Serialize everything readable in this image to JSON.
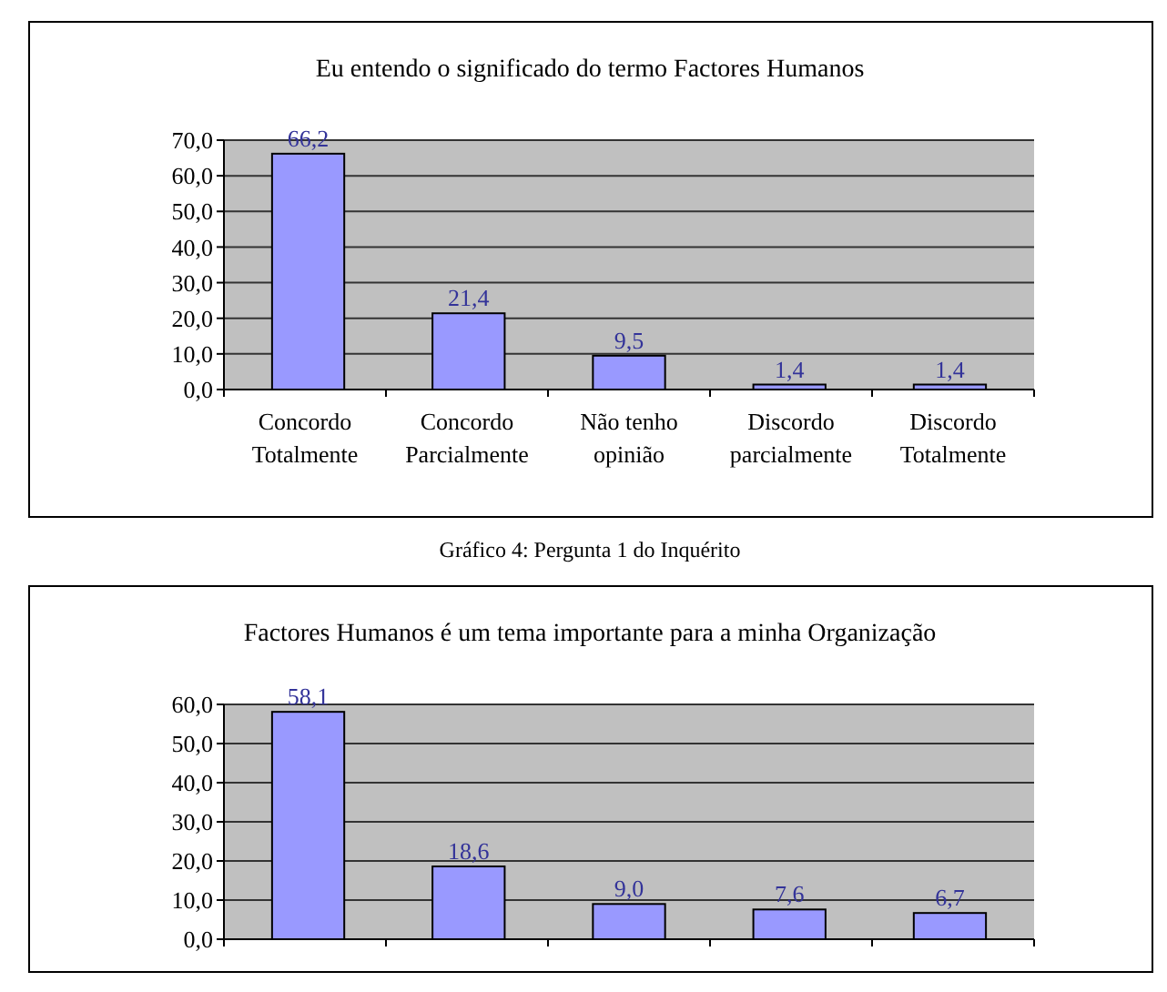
{
  "chart_data": [
    {
      "type": "bar",
      "title": "Eu entendo o significado do termo Factores Humanos",
      "categories": [
        "Concordo Totalmente",
        "Concordo Parcialmente",
        "Não tenho opinião",
        "Discordo parcialmente",
        "Discordo Totalmente"
      ],
      "values": [
        66.2,
        21.4,
        9.5,
        1.4,
        1.4
      ],
      "value_labels": [
        "66,2",
        "21,4",
        "9,5",
        "1,4",
        "1,4"
      ],
      "color": "#9999ff",
      "ylim": [
        0,
        70
      ],
      "yticks": [
        {
          "value": 0,
          "label": "0,0"
        },
        {
          "value": 10,
          "label": "10,0"
        },
        {
          "value": 20,
          "label": "20,0"
        },
        {
          "value": 30,
          "label": "30,0"
        },
        {
          "value": 40,
          "label": "40,0"
        },
        {
          "value": 50,
          "label": "50,0"
        },
        {
          "value": 60,
          "label": "60,0"
        },
        {
          "value": 70,
          "label": "70,0"
        }
      ],
      "grid": "y",
      "annotations": [
        "Gráfico 4: Pergunta 1 do Inquérito"
      ]
    },
    {
      "type": "bar",
      "title": "Factores Humanos é um tema importante para a minha Organização",
      "categories": [
        null,
        null,
        null,
        null,
        null
      ],
      "values": [
        58.1,
        18.6,
        9.0,
        7.6,
        6.7
      ],
      "value_labels": [
        "58,1",
        "18,6",
        "9,0",
        "7,6",
        "6,7"
      ],
      "color": "#9999ff",
      "ylim": [
        0,
        60
      ],
      "yticks": [
        {
          "value": 0,
          "label": "0,0"
        },
        {
          "value": 10,
          "label": "10,0"
        },
        {
          "value": 20,
          "label": "20,0"
        },
        {
          "value": 30,
          "label": "30,0"
        },
        {
          "value": 40,
          "label": "40,0"
        },
        {
          "value": 50,
          "label": "50,0"
        },
        {
          "value": 60,
          "label": "60,0"
        }
      ],
      "grid": "y"
    }
  ]
}
